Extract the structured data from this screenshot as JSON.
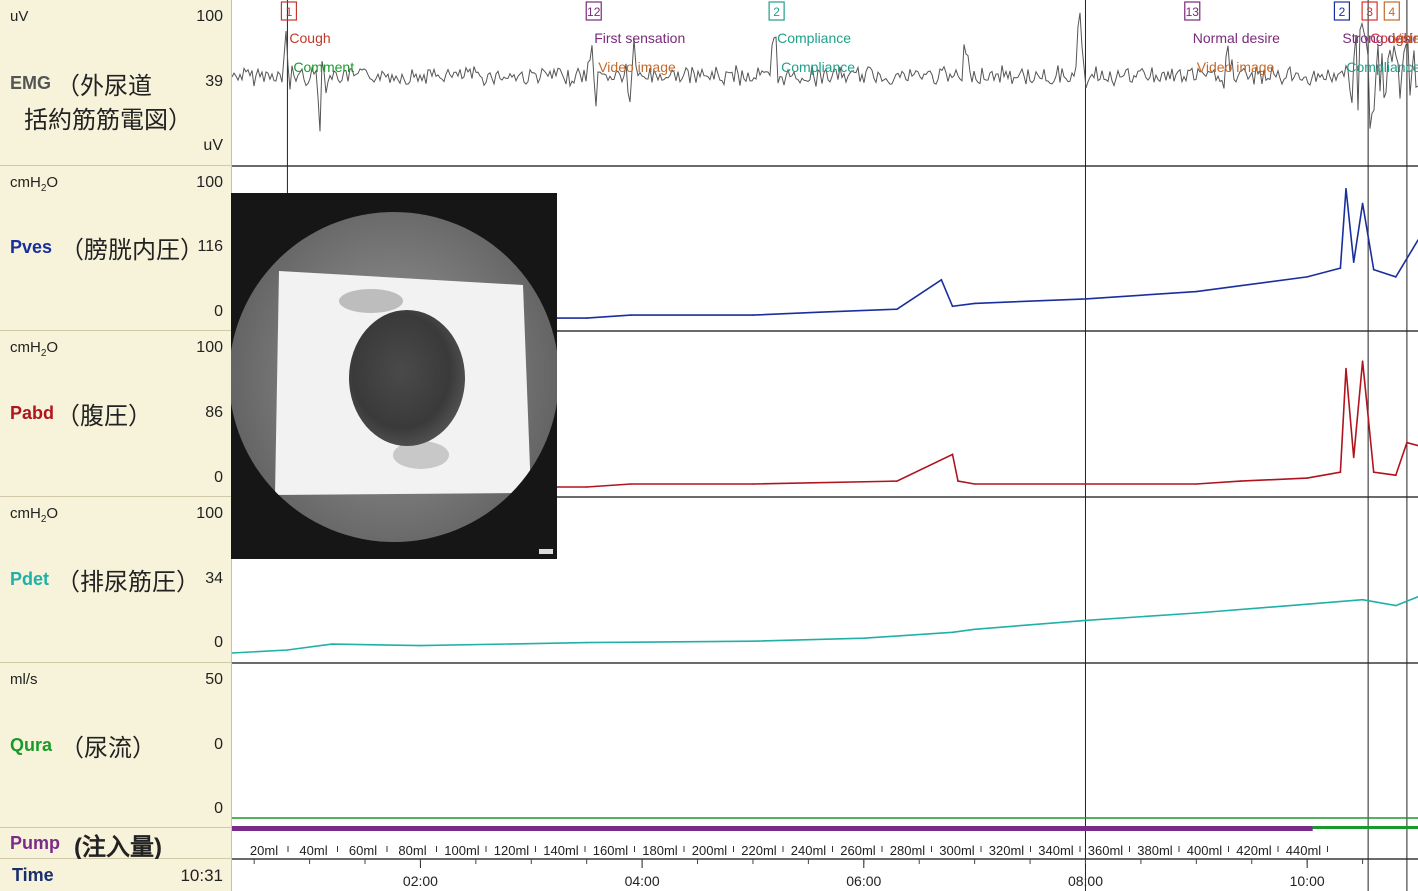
{
  "channels": [
    {
      "name": "EMG",
      "label_jp": "（外尿道",
      "label_jp2": "括約筋筋電図）",
      "unit_top": "uV",
      "scale_max": "100",
      "value": "39",
      "unit_bottom": "uV",
      "color": "#555555"
    },
    {
      "name": "Pves",
      "label_jp": "（膀胱内圧）",
      "unit_top": "cmH",
      "unit_sub": "2",
      "unit_suffix": "O",
      "scale_max": "100",
      "value": "116",
      "scale_min": "0",
      "color": "#1a2f9e"
    },
    {
      "name": "Pabd",
      "label_jp": "（腹圧）",
      "unit_top": "cmH",
      "unit_sub": "2",
      "unit_suffix": "O",
      "scale_max": "100",
      "value": "86",
      "scale_min": "0",
      "color": "#b0141e"
    },
    {
      "name": "Pdet",
      "label_jp": "（排尿筋圧）",
      "unit_top": "cmH",
      "unit_sub": "2",
      "unit_suffix": "O",
      "scale_max": "100",
      "value": "34",
      "scale_min": "0",
      "color": "#1fb0a8"
    },
    {
      "name": "Qura",
      "label_jp": "（尿流）",
      "unit_top": "ml/s",
      "scale_max": "50",
      "value": "0",
      "scale_min": "0",
      "color": "#1a9a2a"
    }
  ],
  "pump": {
    "name": "Pump",
    "label_jp": "(注入量)"
  },
  "time": {
    "label": "Time",
    "value": "10:31"
  },
  "events": [
    {
      "num": "1",
      "color": "#c0392b",
      "label": "Cough",
      "label_color": "#c0392b",
      "sub": "Comment",
      "sub_color": "#1a9a2a"
    },
    {
      "num": "12",
      "color": "#7a2a7a",
      "label": "First sensation",
      "label_color": "#7a2a7a",
      "sub": "Video image",
      "sub_color": "#c46a2a"
    },
    {
      "num": "2",
      "color": "#1fa08a",
      "label": "Compliance",
      "label_color": "#1fa08a",
      "sub": "Compliance",
      "sub_color": "#1fa08a"
    },
    {
      "num": "13",
      "color": "#7a2a7a",
      "label": "Normal desire",
      "label_color": "#7a2a7a",
      "sub": "Video image",
      "sub_color": "#c46a2a"
    },
    {
      "num": "2",
      "color": "#1a2f9e",
      "label": "Strong desire",
      "label_color": "#7a2a7a",
      "sub": "Compliance",
      "sub_color": "#1fa08a"
    },
    {
      "num": "3",
      "color": "#d9302a",
      "label": "Cough",
      "label_color": "#d9302a",
      "sub": "",
      "sub_color": "#d9302a"
    },
    {
      "num": "4",
      "color": "#c46a2a",
      "label": "Video image",
      "label_color": "#c46a2a",
      "sub": "",
      "sub_color": "#c46a2a"
    }
  ],
  "chart_data": {
    "type": "line",
    "x_unit": "minutes",
    "xlim": [
      0.3,
      11.0
    ],
    "x_tick_labels": [
      "02:00",
      "04:00",
      "06:00",
      "08:00",
      "10:00"
    ],
    "x_tick_values": [
      2,
      4,
      6,
      8,
      10
    ],
    "volume_labels": [
      "20ml",
      "40ml",
      "60ml",
      "80ml",
      "100ml",
      "120ml",
      "140ml",
      "160ml",
      "180ml",
      "200ml",
      "220ml",
      "240ml",
      "260ml",
      "280ml",
      "300ml",
      "320ml",
      "340ml",
      "360ml",
      "380ml",
      "400ml",
      "420ml",
      "440ml"
    ],
    "series": [
      {
        "name": "Pves",
        "ylim": [
          0,
          100
        ],
        "x": [
          0.3,
          0.6,
          3.5,
          3.9,
          5.0,
          5.6,
          6.3,
          6.7,
          6.8,
          7.0,
          8.0,
          9.0,
          9.4,
          10.0,
          10.3,
          10.35,
          10.42,
          10.5,
          10.6,
          10.8,
          11.0
        ],
        "y": [
          0,
          2,
          2,
          4,
          4,
          6,
          8,
          28,
          10,
          12,
          15,
          20,
          24,
          30,
          36,
          90,
          40,
          80,
          35,
          30,
          55
        ]
      },
      {
        "name": "Pabd",
        "ylim": [
          0,
          100
        ],
        "x": [
          0.3,
          3.5,
          3.9,
          5.0,
          6.3,
          6.8,
          6.85,
          7.0,
          8.0,
          9.0,
          9.4,
          10.0,
          10.3,
          10.35,
          10.42,
          10.5,
          10.6,
          10.8,
          10.9,
          11.0
        ],
        "y": [
          0,
          0,
          2,
          2,
          4,
          22,
          4,
          2,
          2,
          2,
          4,
          6,
          10,
          80,
          20,
          85,
          10,
          8,
          30,
          28
        ]
      },
      {
        "name": "Pdet",
        "ylim": [
          0,
          100
        ],
        "x": [
          0.3,
          0.8,
          1.2,
          2.0,
          3.5,
          5.0,
          6.0,
          6.8,
          7.0,
          8.0,
          9.0,
          10.0,
          10.5,
          10.8,
          11.0
        ],
        "y": [
          0,
          2,
          6,
          5,
          7,
          8,
          10,
          14,
          16,
          22,
          27,
          33,
          36,
          32,
          38
        ]
      },
      {
        "name": "Qura",
        "ylim": [
          0,
          50
        ],
        "x": [
          0.3,
          11.0
        ],
        "y": [
          0,
          0
        ]
      }
    ]
  }
}
